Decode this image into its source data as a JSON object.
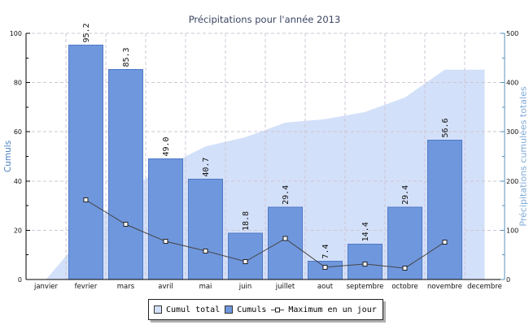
{
  "chart_data": {
    "type": "bar",
    "title": "Précipitations pour l'année 2013",
    "categories": [
      "janvier",
      "fevrier",
      "mars",
      "avril",
      "mai",
      "juin",
      "juillet",
      "aout",
      "septembre",
      "octobre",
      "novembre",
      "decembre"
    ],
    "ylabel": "Cumuls",
    "y2label": "Précipitations cumulées totales",
    "ylim": [
      0,
      100
    ],
    "y2lim": [
      0,
      500
    ],
    "yticks": [
      0,
      20,
      40,
      60,
      80,
      100
    ],
    "y2ticks": [
      0,
      100,
      200,
      300,
      400,
      500
    ],
    "grid": true,
    "legend_position": "bottom",
    "series": [
      {
        "name": "Cumul total",
        "type": "area",
        "axis": "right",
        "color": "#d3e0f9",
        "values": [
          0,
          95.2,
          180.5,
          229.5,
          270.2,
          289.0,
          318.4,
          325.8,
          340.2,
          369.6,
          426.2,
          426.2
        ]
      },
      {
        "name": "Cumuls",
        "type": "bar",
        "axis": "left",
        "color": "#6f97dd",
        "values": [
          null,
          95.2,
          85.3,
          49.0,
          40.7,
          18.8,
          29.4,
          7.4,
          14.4,
          29.4,
          56.6,
          null
        ],
        "labels": [
          null,
          "95.2",
          "85.3",
          "49.0",
          "40.7",
          "18.8",
          "29.4",
          "7.4",
          "14.4",
          "29.4",
          "56.6",
          null
        ]
      },
      {
        "name": "Maximum en un jour",
        "type": "line",
        "axis": "left",
        "color": "#444444",
        "values": [
          null,
          32.3,
          22.4,
          15.5,
          11.6,
          7.3,
          16.6,
          5.0,
          6.3,
          4.6,
          15.2,
          null
        ]
      }
    ]
  }
}
